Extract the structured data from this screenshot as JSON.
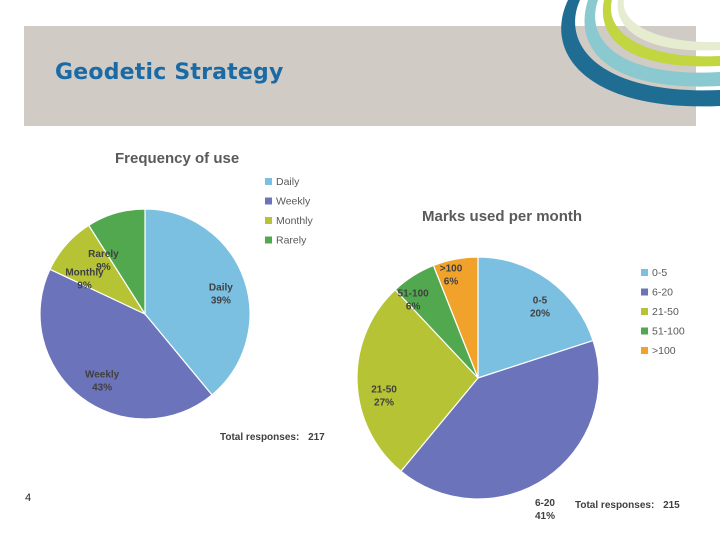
{
  "slide": {
    "title": "Geodetic Strategy",
    "page_number": "4",
    "colors": {
      "title": "#1a6aa6",
      "header_band": "#d0cbc5"
    }
  },
  "chart_data": [
    {
      "type": "pie",
      "title": "Frequency of use",
      "slices": [
        {
          "name": "Daily",
          "value": 39,
          "label": "39%",
          "color": "#7bbfe1"
        },
        {
          "name": "Weekly",
          "value": 43,
          "label": "43%",
          "color": "#6b73ba"
        },
        {
          "name": "Monthly",
          "value": 9,
          "label": "9%",
          "color": "#b5c334"
        },
        {
          "name": "Rarely",
          "value": 9,
          "label": "9%",
          "color": "#52a84e"
        }
      ],
      "legend": [
        "Daily",
        "Weekly",
        "Monthly",
        "Rarely"
      ],
      "legend_position": "right",
      "total_label": "Total responses:",
      "total_value": "217"
    },
    {
      "type": "pie",
      "title": "Marks used per month",
      "slices": [
        {
          "name": "0-5",
          "value": 20,
          "label": "20%",
          "color": "#7bbfe1"
        },
        {
          "name": "6-20",
          "value": 41,
          "label": "41%",
          "color": "#6b73ba"
        },
        {
          "name": "21-50",
          "value": 27,
          "label": "27%",
          "color": "#b5c334"
        },
        {
          "name": "51-100",
          "value": 6,
          "label": "6%",
          "color": "#52a84e"
        },
        {
          "name": ">100",
          "value": 6,
          "label": "6%",
          "color": "#f0a22a"
        }
      ],
      "legend": [
        "0-5",
        "6-20",
        "21-50",
        "51-100",
        ">100"
      ],
      "legend_position": "right",
      "total_label": "Total responses:",
      "total_value": "215"
    }
  ]
}
